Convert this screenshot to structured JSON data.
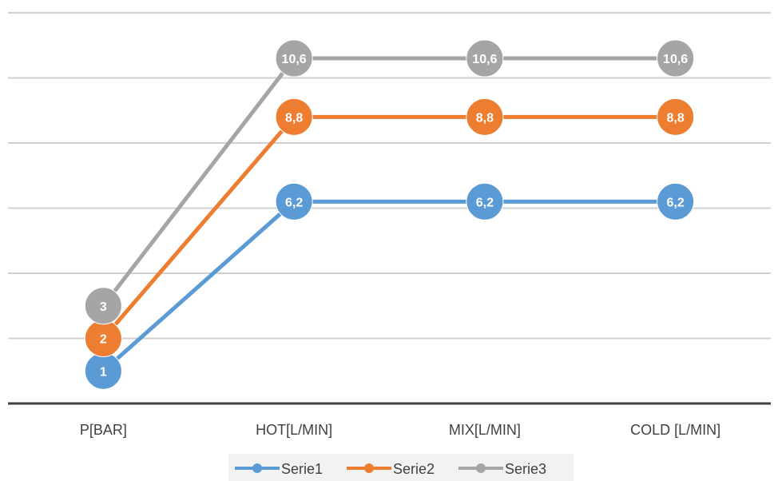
{
  "chart_data": {
    "type": "line",
    "categories": [
      "P[BAR]",
      "HOT[L/MIN]",
      "MIX[L/MIN]",
      "COLD [L/MIN]"
    ],
    "series": [
      {
        "name": "Serie1",
        "values": [
          1,
          6.2,
          6.2,
          6.2
        ],
        "labels": [
          "1",
          "6,2",
          "6,2",
          "6,2"
        ],
        "color": "#5B9BD5"
      },
      {
        "name": "Serie2",
        "values": [
          2,
          8.8,
          8.8,
          8.8
        ],
        "labels": [
          "2",
          "8,8",
          "8,8",
          "8,8"
        ],
        "color": "#ED7D31"
      },
      {
        "name": "Serie3",
        "values": [
          3,
          10.6,
          10.6,
          10.6
        ],
        "labels": [
          "3",
          "10,6",
          "10,6",
          "10,6"
        ],
        "color": "#A5A5A5"
      }
    ],
    "ylim": [
      0,
      12
    ],
    "grid": true,
    "legend": "bottom-center"
  }
}
